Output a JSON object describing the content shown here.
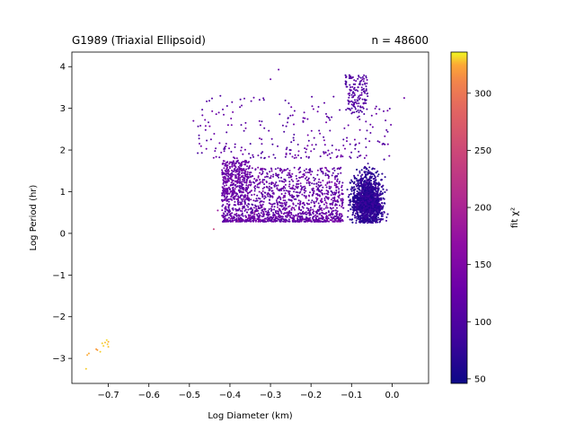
{
  "chart_data": {
    "type": "scatter",
    "title_left": "G1989 (Triaxial Ellipsoid)",
    "title_right": "n = 48600",
    "xlabel": "Log Diameter (km)",
    "ylabel": "Log Period (hr)",
    "xlim": [
      -0.79,
      0.09
    ],
    "ylim": [
      -3.6,
      4.35
    ],
    "xticks": [
      -0.7,
      -0.6,
      -0.5,
      -0.4,
      -0.3,
      -0.2,
      -0.1,
      0.0
    ],
    "xtick_labels": [
      "−0.7",
      "−0.6",
      "−0.5",
      "−0.4",
      "−0.3",
      "−0.2",
      "−0.1",
      "0.0"
    ],
    "yticks": [
      -3,
      -2,
      -1,
      0,
      1,
      2,
      3,
      4
    ],
    "ytick_labels": [
      "−3",
      "−2",
      "−1",
      "0",
      "1",
      "2",
      "3",
      "4"
    ],
    "colorbar": {
      "label": "fit χ²",
      "min": 46,
      "max": 336,
      "colormap": "plasma",
      "ticks": [
        50,
        100,
        150,
        200,
        250,
        300
      ],
      "tick_labels": [
        "50",
        "100",
        "150",
        "200",
        "250",
        "300"
      ]
    },
    "groups": [
      {
        "description_key": "main_cluster",
        "x_range": [
          -0.14,
          0.04
        ],
        "y_range": [
          0.2,
          3.0
        ],
        "chi2_range": [
          50,
          90
        ]
      },
      {
        "description_key": "mid_band",
        "x_range": [
          -0.42,
          -0.14
        ],
        "y_range": [
          0.3,
          1.8
        ],
        "chi2_range": [
          90,
          160
        ]
      },
      {
        "description_key": "upper_sparse",
        "x_range": [
          -0.49,
          0.0
        ],
        "y_range": [
          1.8,
          4.0
        ],
        "chi2_range": [
          80,
          150
        ]
      }
    ],
    "outliers": [
      {
        "x": -0.755,
        "y": -3.25,
        "chi2": 330
      },
      {
        "x": -0.752,
        "y": -2.92,
        "chi2": 325
      },
      {
        "x": -0.748,
        "y": -2.88,
        "chi2": 325
      },
      {
        "x": -0.73,
        "y": -2.78,
        "chi2": 320
      },
      {
        "x": -0.727,
        "y": -2.8,
        "chi2": 320
      },
      {
        "x": -0.72,
        "y": -2.84,
        "chi2": 330
      },
      {
        "x": -0.712,
        "y": -2.7,
        "chi2": 330
      },
      {
        "x": -0.708,
        "y": -2.62,
        "chi2": 328
      },
      {
        "x": -0.704,
        "y": -2.56,
        "chi2": 332
      },
      {
        "x": -0.702,
        "y": -2.66,
        "chi2": 330
      },
      {
        "x": -0.7,
        "y": -2.6,
        "chi2": 325
      },
      {
        "x": -0.715,
        "y": -2.64,
        "chi2": 330
      },
      {
        "x": -0.7,
        "y": -2.72,
        "chi2": 328
      },
      {
        "x": -0.44,
        "y": 0.1,
        "chi2": 240
      },
      {
        "x": -0.43,
        "y": 0.55,
        "chi2": 180
      },
      {
        "x": -0.38,
        "y": 0.3,
        "chi2": 200
      },
      {
        "x": -0.34,
        "y": 0.5,
        "chi2": 190
      },
      {
        "x": 0.03,
        "y": 3.25,
        "chi2": 130
      },
      {
        "x": -0.28,
        "y": 3.93,
        "chi2": 120
      },
      {
        "x": -0.3,
        "y": 3.7,
        "chi2": 120
      },
      {
        "x": -0.49,
        "y": 2.7,
        "chi2": 130
      },
      {
        "x": -0.46,
        "y": 2.58,
        "chi2": 140
      },
      {
        "x": -0.45,
        "y": 2.57,
        "chi2": 140
      }
    ]
  }
}
